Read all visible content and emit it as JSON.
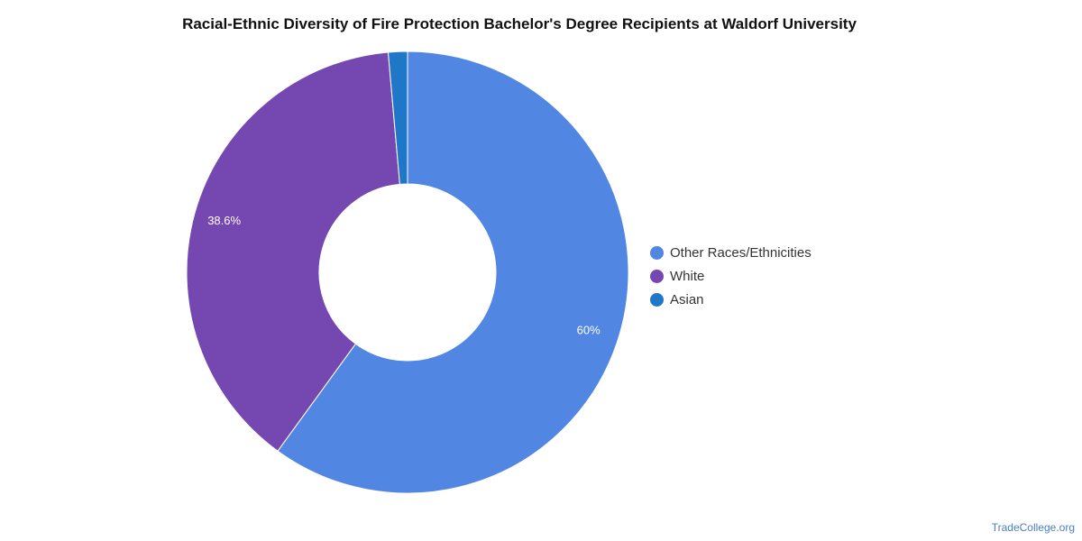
{
  "watermark": "TradeCollege.org",
  "chart_data": {
    "type": "pie",
    "variant": "donut",
    "title": "Racial-Ethnic Diversity of Fire Protection Bachelor's Degree Recipients at Waldorf University",
    "legend_position": "right",
    "slices": [
      {
        "name": "Other Races/Ethnicities",
        "value": 60.0,
        "label": "60%",
        "color": "#5186e2"
      },
      {
        "name": "White",
        "value": 38.6,
        "label": "38.6%",
        "color": "#7547b0"
      },
      {
        "name": "Asian",
        "value": 1.4,
        "label": "",
        "color": "#1f77c8"
      }
    ]
  }
}
